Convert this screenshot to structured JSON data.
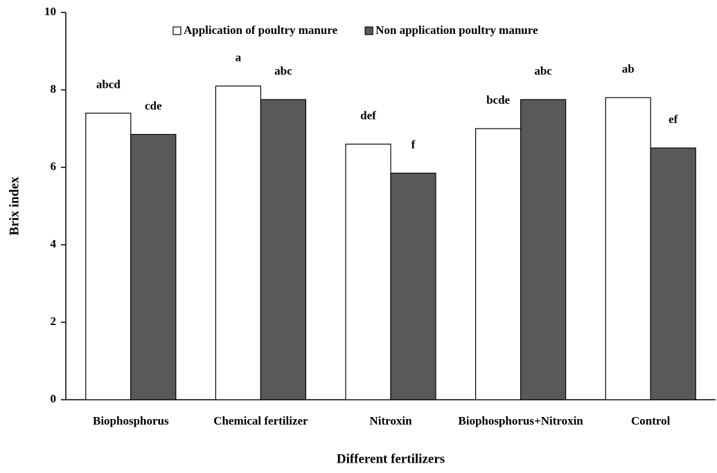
{
  "chart_data": {
    "type": "bar",
    "x_label": "Different fertilizers",
    "y_label": "Brix index",
    "categories": [
      "Biophosphorus",
      "Chemical fertilizer",
      "Nitroxin",
      "Biophosphorus+Nitroxin",
      "Control"
    ],
    "series": [
      {
        "name": "Application of poultry manure",
        "color": "#ffffff",
        "values": [
          7.4,
          8.1,
          6.6,
          7.0,
          7.8
        ],
        "letters": [
          "abcd",
          "a",
          "def",
          "bcde",
          "ab"
        ]
      },
      {
        "name": "Non application poultry manure",
        "color": "#595959",
        "values": [
          6.85,
          7.75,
          5.85,
          7.75,
          6.5
        ],
        "letters": [
          "cde",
          "abc",
          "f",
          "abc",
          "ef"
        ]
      }
    ],
    "ylim": [
      0,
      10
    ],
    "yticks": [
      0,
      2,
      4,
      6,
      8,
      10
    ],
    "grid": false,
    "legend": "top"
  }
}
